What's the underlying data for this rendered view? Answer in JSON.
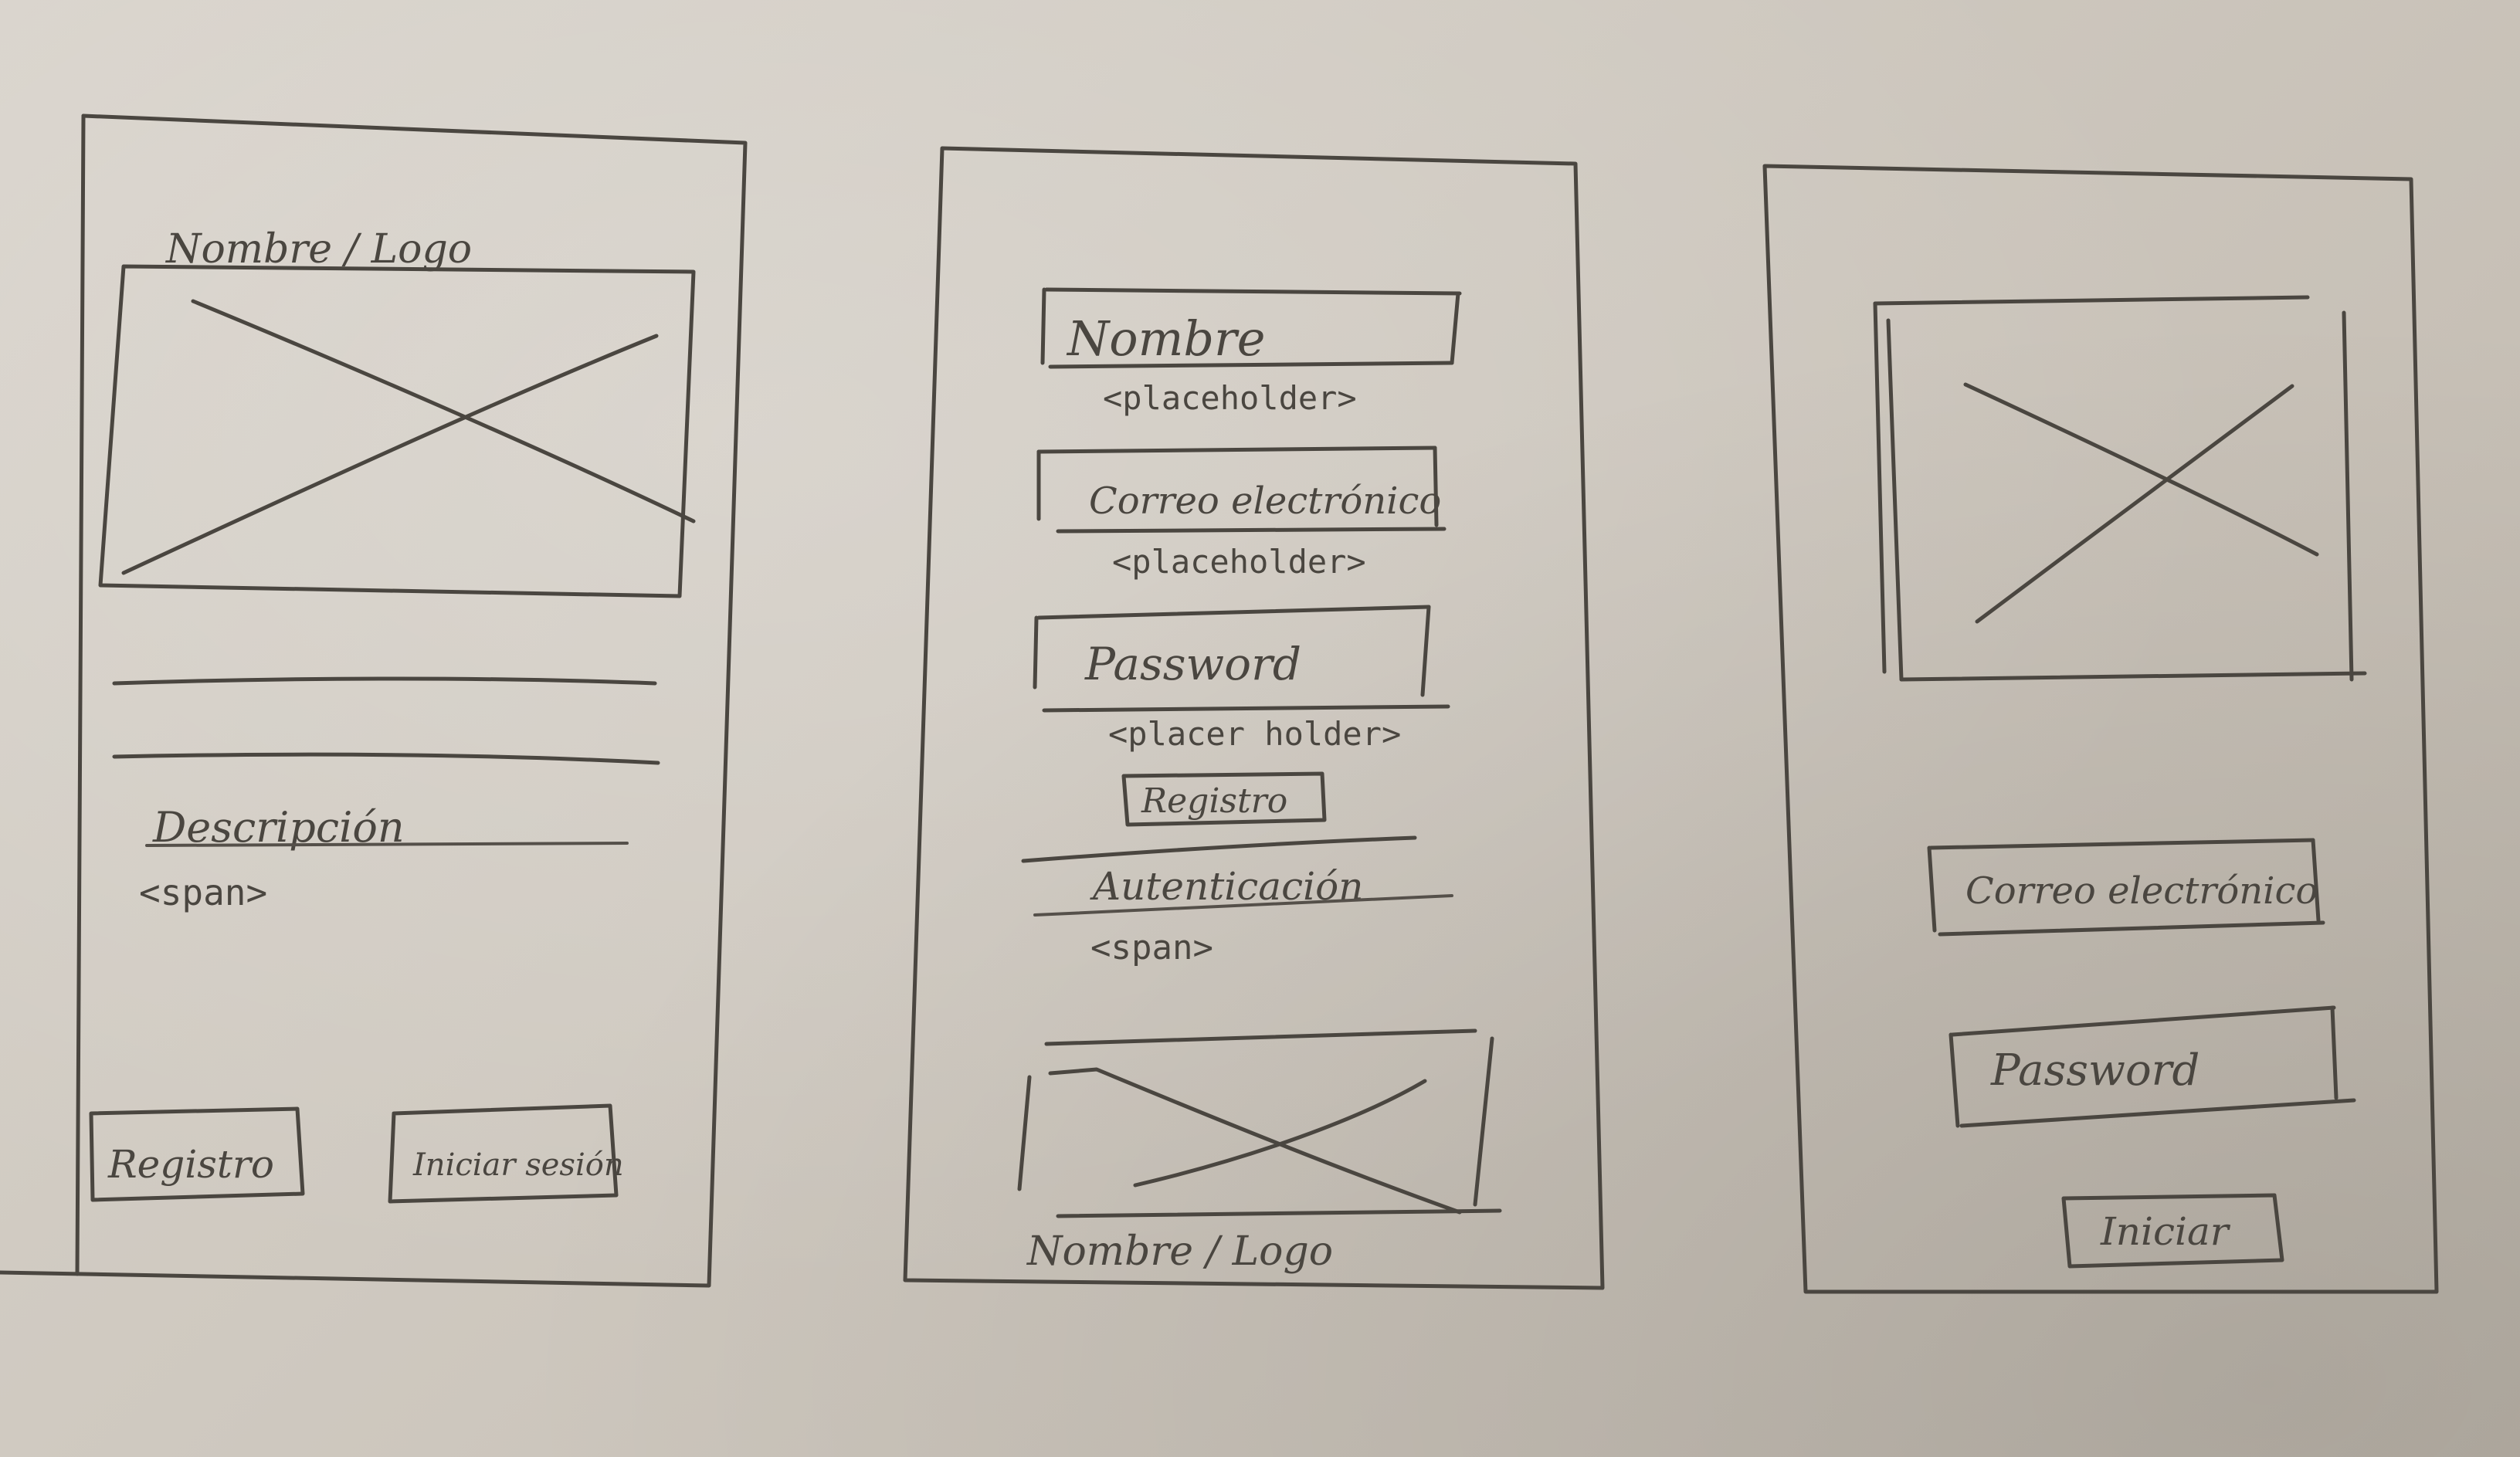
{
  "screen_1": {
    "logo_label": "Nombre / Logo",
    "description_label": "Descripción",
    "description_span": "<span>",
    "register_button": "Registro",
    "login_button": "Iniciar sesión"
  },
  "screen_2": {
    "name_field_label": "Nombre",
    "name_field_placeholder": "<placeholder>",
    "email_field_label": "Correo electrónico",
    "email_field_placeholder": "<placeholder>",
    "password_field_label": "Password",
    "password_field_placeholder": "<placer holder>",
    "register_button": "Registro",
    "auth_label": "Autenticación",
    "auth_span": "<span>",
    "footer_logo_label": "Nombre / Logo"
  },
  "screen_3": {
    "email_field_label": "Correo electrónico",
    "password_field_label": "Password",
    "start_button": "Iniciar"
  },
  "colors": {
    "paper": "#d2ccc3",
    "pencil": "#4a4640"
  }
}
